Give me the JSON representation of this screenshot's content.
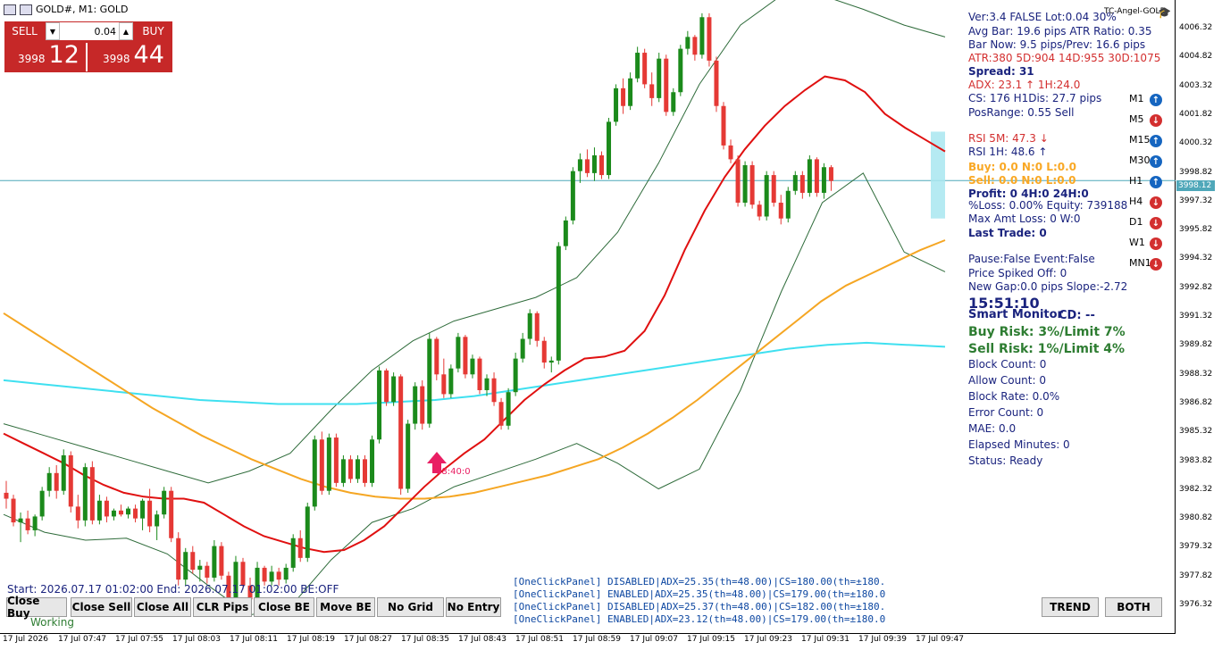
{
  "window": {
    "title": "GOLD#, M1: GOLD",
    "symbol_label": "TC-Angel-GOLD"
  },
  "one_click": {
    "sell_label": "SELL",
    "buy_label": "BUY",
    "lot": "0.04",
    "sell_price_small": "3998",
    "sell_price_big": "12",
    "buy_price_small": "3998",
    "buy_price_big": "44"
  },
  "info_panel": [
    {
      "text": "Ver:3.4 FALSE Lot:0.04 30%",
      "color": "#1a237e",
      "bold": false
    },
    {
      "text": "Avg Bar: 19.6 pips ATR Ratio: 0.35",
      "color": "#1a237e",
      "bold": false
    },
    {
      "text": "Bar Now: 9.5 pips/Prev: 16.6 pips",
      "color": "#1a237e",
      "bold": false
    },
    {
      "text": "ATR:380 5D:904 14D:955 30D:1075",
      "color": "#d32f2f",
      "bold": false
    },
    {
      "text": "Spread: 31",
      "color": "#1a237e",
      "bold": true
    },
    {
      "text": "ADX: 23.1 ↑ 1H:24.0",
      "color": "#d32f2f",
      "bold": false
    },
    {
      "text": "CS: 176 H1Dis: 27.7 pips",
      "color": "#1a237e",
      "bold": false
    },
    {
      "text": "PosRange: 0.55 Sell",
      "color": "#1a237e",
      "bold": false
    },
    {
      "text": "RSI 5M: 47.3 ↓",
      "color": "#d32f2f",
      "bold": false
    },
    {
      "text": "RSI 1H: 48.6 ↑",
      "color": "#1a237e",
      "bold": false
    },
    {
      "text": "Buy: 0.0 N:0 L:0.0",
      "color": "#f9a825",
      "bold": true
    },
    {
      "text": "Sell: 0.0 N:0 L:0.0",
      "color": "#f9a825",
      "bold": true
    },
    {
      "text": "Profit: 0 4H:0 24H:0",
      "color": "#1a237e",
      "bold": true
    },
    {
      "text": "%Loss: 0.00% Equity: 739188",
      "color": "#1a237e",
      "bold": false
    },
    {
      "text": "Max Amt Loss: 0 W:0",
      "color": "#1a237e",
      "bold": false
    },
    {
      "text": "Last Trade: 0",
      "color": "#1a237e",
      "bold": true
    },
    {
      "text": "Pause:False Event:False",
      "color": "#1a237e",
      "bold": false
    },
    {
      "text": "Price Spiked Off: 0",
      "color": "#1a237e",
      "bold": false
    },
    {
      "text": "New Gap:0.0 pips Slope:-2.72",
      "color": "#1a237e",
      "bold": false
    },
    {
      "text": "15:51:10",
      "color": "#1a237e",
      "bold": true
    },
    {
      "text": "Smart Monitor",
      "color": "#1a237e",
      "bold": true
    },
    {
      "text": "CD: --",
      "color": "#1a237e",
      "bold": true
    },
    {
      "text": "Buy Risk: 3%/Limit 7%",
      "color": "#2e7d32",
      "bold": true
    },
    {
      "text": "Sell Risk: 1%/Limit 4%",
      "color": "#2e7d32",
      "bold": true
    },
    {
      "text": "Block Count: 0",
      "color": "#1a237e",
      "bold": false
    },
    {
      "text": "Allow Count: 0",
      "color": "#1a237e",
      "bold": false
    },
    {
      "text": "Block Rate: 0.0%",
      "color": "#1a237e",
      "bold": false
    },
    {
      "text": "Error Count: 0",
      "color": "#1a237e",
      "bold": false
    },
    {
      "text": "MAE: 0.0",
      "color": "#1a237e",
      "bold": false
    },
    {
      "text": "Elapsed Minutes: 0",
      "color": "#1a237e",
      "bold": false
    },
    {
      "text": "Status: Ready",
      "color": "#1a237e",
      "bold": false
    }
  ],
  "timeframes": [
    {
      "label": "M1",
      "dir": "up"
    },
    {
      "label": "M5",
      "dir": "down"
    },
    {
      "label": "M15",
      "dir": "up"
    },
    {
      "label": "M30",
      "dir": "up"
    },
    {
      "label": "H1",
      "dir": "up"
    },
    {
      "label": "H4",
      "dir": "down"
    },
    {
      "label": "D1",
      "dir": "down"
    },
    {
      "label": "W1",
      "dir": "down"
    },
    {
      "label": "MN1",
      "dir": "down"
    }
  ],
  "price_axis": [
    "4006.32",
    "4004.82",
    "4003.32",
    "4001.82",
    "4000.32",
    "3998.82",
    "3997.32",
    "3995.82",
    "3994.32",
    "3992.82",
    "3991.32",
    "3989.82",
    "3988.32",
    "3986.82",
    "3985.32",
    "3983.82",
    "3982.32",
    "3980.82",
    "3979.32",
    "3977.82",
    "3976.32"
  ],
  "current_price": "3998.12",
  "time_axis": [
    "17 Jul 2026",
    "17 Jul 07:47",
    "17 Jul 07:55",
    "17 Jul 08:03",
    "17 Jul 08:11",
    "17 Jul 08:19",
    "17 Jul 08:27",
    "17 Jul 08:35",
    "17 Jul 08:43",
    "17 Jul 08:51",
    "17 Jul 08:59",
    "17 Jul 09:07",
    "17 Jul 09:15",
    "17 Jul 09:23",
    "17 Jul 09:31",
    "17 Jul 09:39",
    "17 Jul 09:47"
  ],
  "arrow_label": "08:40:0",
  "start_line": "Start: 2026.07.17 01:02:00 End: 2026.07.17 01:02:00 BE:OFF",
  "working": "Working",
  "buttons": [
    "Close Buy",
    "Close Sell",
    "Close All",
    "CLR Pips",
    "Close BE",
    "Move BE",
    "No Grid",
    "No Entry"
  ],
  "right_buttons": [
    "TREND",
    "BOTH"
  ],
  "log_lines": [
    "[OneClickPanel] DISABLED|ADX=25.35(th=48.00)|CS=180.00(th=±180.",
    "[OneClickPanel] ENABLED|ADX=25.35(th=48.00)|CS=179.00(th=±180.0",
    "[OneClickPanel] DISABLED|ADX=25.37(th=48.00)|CS=182.00(th=±180.",
    "[OneClickPanel] ENABLED|ADX=23.12(th=48.00)|CS=179.00(th=±180.0"
  ],
  "colors": {
    "bull": "#1b8a1b",
    "bear": "#e53935",
    "ma_red": "#e01010",
    "ma_orange": "#f5a623",
    "ma_cyan": "#3fe0f0",
    "band": "#2e6b3a",
    "hline": "#4fa7b9"
  },
  "chart_data": {
    "type": "candlestick",
    "ylim": [
      3975.6,
      4007.0
    ],
    "candles": [
      [
        3982.3,
        3982.9,
        3981.5,
        3982.0
      ],
      [
        3982.0,
        3982.2,
        3980.6,
        3980.8
      ],
      [
        3980.8,
        3981.3,
        3979.8,
        3981.0
      ],
      [
        3981.0,
        3981.4,
        3980.2,
        3980.4
      ],
      [
        3980.4,
        3981.2,
        3980.1,
        3981.1
      ],
      [
        3981.1,
        3982.6,
        3980.9,
        3982.4
      ],
      [
        3982.4,
        3983.6,
        3982.1,
        3983.3
      ],
      [
        3983.3,
        3983.7,
        3982.0,
        3982.4
      ],
      [
        3982.4,
        3984.5,
        3982.2,
        3984.2
      ],
      [
        3984.2,
        3984.4,
        3981.3,
        3981.6
      ],
      [
        3981.6,
        3982.2,
        3980.5,
        3980.9
      ],
      [
        3980.9,
        3983.8,
        3980.6,
        3983.6
      ],
      [
        3983.6,
        3983.9,
        3980.7,
        3980.9
      ],
      [
        3980.9,
        3982.2,
        3980.7,
        3981.9
      ],
      [
        3981.9,
        3982.1,
        3980.8,
        3981.1
      ],
      [
        3981.1,
        3981.5,
        3980.9,
        3981.4
      ],
      [
        3981.4,
        3981.7,
        3981.1,
        3981.2
      ],
      [
        3981.2,
        3981.6,
        3981.0,
        3981.5
      ],
      [
        3981.5,
        3981.7,
        3980.8,
        3981.0
      ],
      [
        3981.0,
        3982.0,
        3980.4,
        3981.9
      ],
      [
        3981.9,
        3982.5,
        3980.3,
        3980.6
      ],
      [
        3980.6,
        3981.4,
        3979.9,
        3981.2
      ],
      [
        3981.2,
        3982.6,
        3981.0,
        3982.4
      ],
      [
        3982.4,
        3982.6,
        3979.8,
        3980.0
      ],
      [
        3980.0,
        3980.3,
        3977.6,
        3977.9
      ],
      [
        3977.9,
        3979.5,
        3977.6,
        3979.3
      ],
      [
        3979.3,
        3979.6,
        3978.2,
        3978.4
      ],
      [
        3978.4,
        3978.9,
        3977.8,
        3978.6
      ],
      [
        3978.6,
        3978.8,
        3977.7,
        3978.0
      ],
      [
        3978.0,
        3979.9,
        3977.8,
        3979.6
      ],
      [
        3979.6,
        3979.8,
        3977.9,
        3978.1
      ],
      [
        3978.1,
        3978.3,
        3976.6,
        3976.9
      ],
      [
        3976.9,
        3979.1,
        3976.7,
        3978.8
      ],
      [
        3978.8,
        3979.0,
        3977.4,
        3977.6
      ],
      [
        3977.6,
        3978.0,
        3976.6,
        3976.9
      ],
      [
        3976.9,
        3978.8,
        3976.7,
        3978.5
      ],
      [
        3978.5,
        3978.6,
        3977.6,
        3977.8
      ],
      [
        3977.8,
        3978.6,
        3977.6,
        3978.3
      ],
      [
        3978.3,
        3978.5,
        3977.6,
        3977.9
      ],
      [
        3977.9,
        3978.7,
        3977.7,
        3978.5
      ],
      [
        3978.5,
        3980.2,
        3978.3,
        3980.0
      ],
      [
        3980.0,
        3980.4,
        3978.8,
        3979.0
      ],
      [
        3979.0,
        3981.8,
        3978.8,
        3981.6
      ],
      [
        3981.6,
        3985.2,
        3981.4,
        3985.0
      ],
      [
        3985.0,
        3985.4,
        3982.2,
        3982.4
      ],
      [
        3982.4,
        3985.3,
        3982.2,
        3985.1
      ],
      [
        3985.1,
        3985.3,
        3982.6,
        3982.8
      ],
      [
        3982.8,
        3984.2,
        3982.6,
        3984.0
      ],
      [
        3984.0,
        3984.2,
        3982.8,
        3983.0
      ],
      [
        3983.0,
        3984.2,
        3982.8,
        3984.0
      ],
      [
        3984.0,
        3984.2,
        3982.6,
        3982.8
      ],
      [
        3982.8,
        3985.2,
        3982.6,
        3985.0
      ],
      [
        3985.0,
        3988.7,
        3984.8,
        3988.5
      ],
      [
        3988.5,
        3988.6,
        3986.7,
        3986.9
      ],
      [
        3986.9,
        3988.4,
        3986.7,
        3988.2
      ],
      [
        3988.2,
        3988.3,
        3982.2,
        3982.5
      ],
      [
        3982.5,
        3986.0,
        3982.3,
        3985.8
      ],
      [
        3985.8,
        3987.9,
        3985.5,
        3987.7
      ],
      [
        3987.7,
        3988.0,
        3985.5,
        3985.8
      ],
      [
        3985.8,
        3990.4,
        3985.6,
        3990.1
      ],
      [
        3990.1,
        3990.2,
        3988.0,
        3988.3
      ],
      [
        3988.3,
        3989.1,
        3987.1,
        3987.3
      ],
      [
        3987.3,
        3988.8,
        3987.1,
        3988.6
      ],
      [
        3988.6,
        3990.4,
        3988.4,
        3990.2
      ],
      [
        3990.2,
        3990.3,
        3988.1,
        3988.3
      ],
      [
        3988.3,
        3989.3,
        3988.1,
        3989.1
      ],
      [
        3989.1,
        3989.2,
        3987.3,
        3987.5
      ],
      [
        3987.5,
        3988.3,
        3987.2,
        3988.1
      ],
      [
        3988.1,
        3988.4,
        3986.7,
        3986.9
      ],
      [
        3986.9,
        3987.1,
        3985.5,
        3985.7
      ],
      [
        3985.7,
        3987.6,
        3985.5,
        3987.4
      ],
      [
        3987.4,
        3989.4,
        3987.2,
        3989.1
      ],
      [
        3989.1,
        3990.4,
        3988.9,
        3990.1
      ],
      [
        3990.1,
        3991.6,
        3989.8,
        3991.4
      ],
      [
        3991.4,
        3991.5,
        3989.7,
        3990.0
      ],
      [
        3990.0,
        3990.2,
        3988.6,
        3988.9
      ],
      [
        3988.9,
        3989.2,
        3988.4,
        3989.0
      ],
      [
        3989.0,
        3995.0,
        3988.8,
        3994.8
      ],
      [
        3994.8,
        3996.3,
        3994.6,
        3996.1
      ],
      [
        3996.1,
        3998.8,
        3995.9,
        3998.6
      ],
      [
        3998.6,
        3999.5,
        3998.0,
        3999.2
      ],
      [
        3999.2,
        3999.7,
        3998.3,
        3998.5
      ],
      [
        3998.5,
        3999.8,
        3998.1,
        3999.4
      ],
      [
        3999.4,
        3999.6,
        3998.2,
        3998.4
      ],
      [
        3998.4,
        4001.3,
        3998.2,
        4001.1
      ],
      [
        4001.1,
        4003.0,
        4000.9,
        4002.8
      ],
      [
        4002.8,
        4003.3,
        4001.5,
        4001.9
      ],
      [
        4001.9,
        4003.6,
        4001.7,
        4003.3
      ],
      [
        4003.3,
        4004.9,
        4003.1,
        4004.6
      ],
      [
        4004.6,
        4004.8,
        4002.8,
        4003.0
      ],
      [
        4003.0,
        4003.6,
        4001.9,
        4002.3
      ],
      [
        4002.3,
        4004.6,
        4002.1,
        4004.3
      ],
      [
        4004.3,
        4004.5,
        4001.4,
        4001.6
      ],
      [
        4001.6,
        4002.8,
        4001.4,
        4002.6
      ],
      [
        4002.6,
        4005.0,
        4002.4,
        4004.8
      ],
      [
        4004.8,
        4005.7,
        4004.5,
        4005.4
      ],
      [
        4005.4,
        4005.5,
        4004.2,
        4004.5
      ],
      [
        4004.5,
        4006.6,
        4004.3,
        4006.4
      ],
      [
        4006.4,
        4006.6,
        4003.9,
        4004.2
      ],
      [
        4004.2,
        4004.4,
        4001.6,
        4001.9
      ],
      [
        4001.9,
        4002.1,
        3999.7,
        3999.9
      ],
      [
        3999.9,
        4000.2,
        3999.0,
        3999.2
      ],
      [
        3999.2,
        3999.4,
        3996.8,
        3997.0
      ],
      [
        3997.0,
        3999.1,
        3996.8,
        3998.9
      ],
      [
        3998.9,
        3999.1,
        3996.7,
        3996.9
      ],
      [
        3996.9,
        3997.1,
        3996.1,
        3996.3
      ],
      [
        3996.3,
        3998.6,
        3996.1,
        3998.4
      ],
      [
        3998.4,
        3998.6,
        3996.8,
        3997.0
      ],
      [
        3997.0,
        3997.4,
        3995.9,
        3996.2
      ],
      [
        3996.2,
        3997.8,
        3996.0,
        3997.6
      ],
      [
        3997.6,
        3998.6,
        3997.4,
        3998.4
      ],
      [
        3998.4,
        3998.6,
        3997.2,
        3997.5
      ],
      [
        3997.5,
        3999.4,
        3997.3,
        3999.2
      ],
      [
        3999.2,
        3999.3,
        3997.3,
        3997.5
      ],
      [
        3997.5,
        3999.0,
        3997.2,
        3998.8
      ],
      [
        3998.8,
        3998.9,
        3997.6,
        3998.1
      ]
    ],
    "ma_red": [
      3985.3,
      3984.8,
      3984.3,
      3983.8,
      3983.2,
      3982.7,
      3982.3,
      3982.1,
      3982.0,
      3982.0,
      3981.8,
      3981.2,
      3980.6,
      3980.1,
      3979.8,
      3979.5,
      3979.3,
      3979.4,
      3979.9,
      3980.6,
      3981.6,
      3982.6,
      3983.5,
      3984.3,
      3985.0,
      3986.0,
      3987.0,
      3987.8,
      3988.5,
      3989.1,
      3989.2,
      3989.5,
      3990.5,
      3992.3,
      3994.6,
      3996.6,
      3998.3,
      3999.7,
      4000.9,
      4001.9,
      4002.7,
      4003.4,
      4003.2,
      4002.6,
      4001.5,
      4000.8,
      4000.2,
      3999.6
    ],
    "ma_orange": [
      3991.4,
      3990.6,
      3989.8,
      3989.0,
      3988.2,
      3987.4,
      3986.6,
      3985.9,
      3985.2,
      3984.6,
      3984.0,
      3983.5,
      3983.0,
      3982.6,
      3982.3,
      3982.1,
      3982.0,
      3982.0,
      3982.1,
      3982.3,
      3982.6,
      3982.9,
      3983.2,
      3983.6,
      3984.0,
      3984.6,
      3985.3,
      3986.1,
      3987.0,
      3988.0,
      3989.0,
      3990.0,
      3991.0,
      3992.0,
      3992.8,
      3993.4,
      3994.0,
      3994.6,
      3995.1
    ],
    "ma_cyan": [
      3988.0,
      3987.8,
      3987.6,
      3987.4,
      3987.2,
      3987.0,
      3986.9,
      3986.8,
      3986.8,
      3986.8,
      3986.9,
      3987.0,
      3987.2,
      3987.5,
      3987.8,
      3988.1,
      3988.4,
      3988.7,
      3989.0,
      3989.3,
      3989.6,
      3989.8,
      3989.9,
      3989.8,
      3989.7
    ],
    "bb_upper": [
      3985.8,
      3985.2,
      3984.6,
      3984.0,
      3983.4,
      3982.8,
      3983.4,
      3984.3,
      3986.5,
      3988.5,
      3990.0,
      3991.0,
      3991.6,
      3992.2,
      3993.2,
      3995.5,
      3999.0,
      4003.0,
      4006.0,
      4007.5,
      4007.5,
      4006.8,
      4006.0,
      4005.4
    ],
    "bb_lower": [
      3981.2,
      3980.3,
      3979.9,
      3980.0,
      3979.2,
      3977.6,
      3976.1,
      3976.5,
      3978.9,
      3980.8,
      3981.5,
      3982.6,
      3983.3,
      3984.0,
      3984.8,
      3983.8,
      3982.5,
      3983.5,
      3987.5,
      3992.5,
      3997.0,
      3998.5,
      3994.5,
      3993.5
    ]
  }
}
